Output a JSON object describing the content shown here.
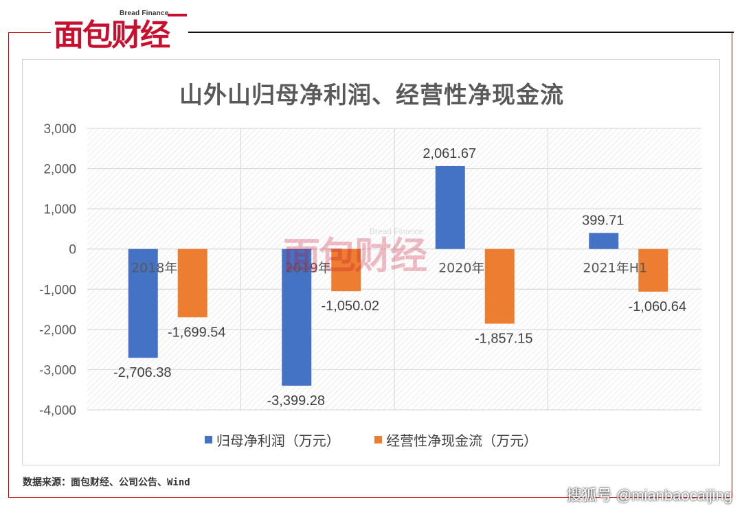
{
  "brand": {
    "name_en": "Bread Finance",
    "name_zh": "面包财经"
  },
  "watermark": {
    "name_en": "Bread Finance",
    "name_zh": "面包财经",
    "corner": "搜狐号 @mianbaocaijing"
  },
  "source": "数据来源：面包财经、公司公告、Wind",
  "colors": {
    "series1": "#4472c4",
    "series2": "#ed7d31",
    "frame": "#c00000",
    "brand_red": "#c8102e",
    "axis_text": "#595959"
  },
  "chart_data": {
    "type": "bar",
    "title": "山外山归母净利润、经营性净现金流",
    "categories": [
      "2018年",
      "2019年",
      "2020年",
      "2021年H1"
    ],
    "series": [
      {
        "name": "归母净利润（万元）",
        "values": [
          -2706.38,
          -3399.28,
          2061.67,
          399.71
        ],
        "labels": [
          "-2,706.38",
          "-3,399.28",
          "2,061.67",
          "399.71"
        ]
      },
      {
        "name": "经营性净现金流（万元）",
        "values": [
          -1699.54,
          -1050.02,
          -1857.15,
          -1060.64
        ],
        "labels": [
          "-1,699.54",
          "-1,050.02",
          "-1,857.15",
          "-1,060.64"
        ]
      }
    ],
    "ylim": [
      -4000,
      3000
    ],
    "yticks": [
      3000,
      2000,
      1000,
      0,
      -1000,
      -2000,
      -3000,
      -4000
    ],
    "ytick_labels": [
      "3,000",
      "2,000",
      "1,000",
      "0",
      "-1,000",
      "-2,000",
      "-3,000",
      "-4,000"
    ],
    "grid": true,
    "legend_position": "bottom"
  }
}
